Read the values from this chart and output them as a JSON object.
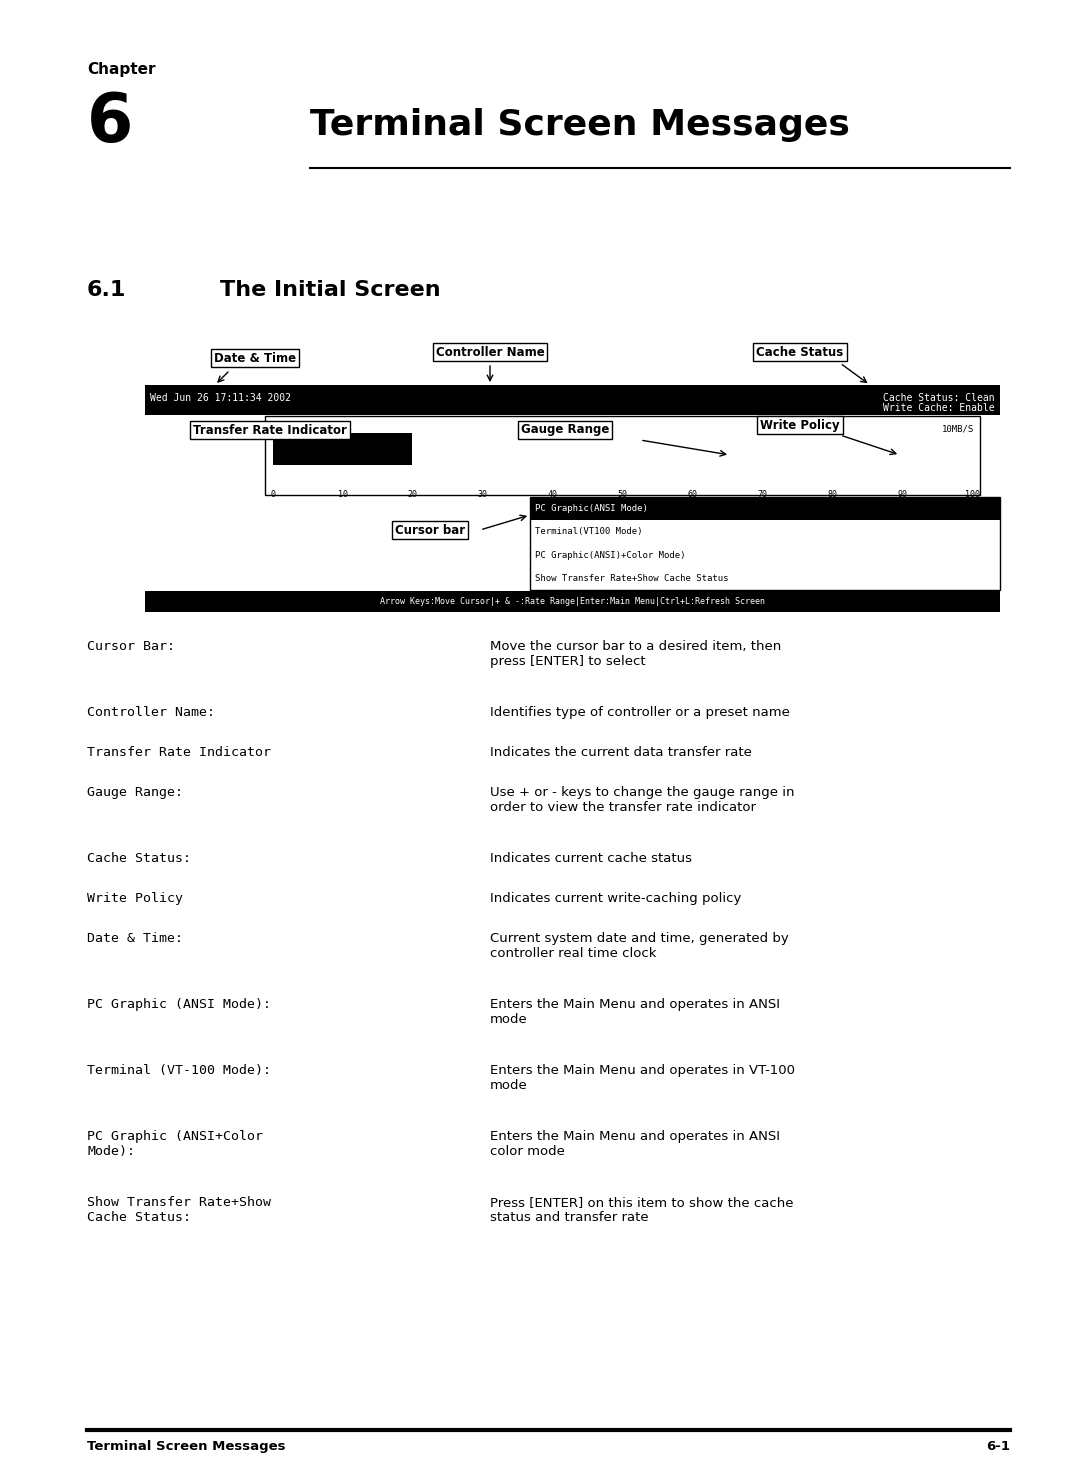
{
  "bg_color": "#ffffff",
  "page_width": 10.8,
  "page_height": 14.76,
  "chapter_label": "Chapter",
  "chapter_number": "6",
  "chapter_title": "Terminal Screen Messages",
  "section_number": "6.1",
  "section_title": "The Initial Screen",
  "footer_left": "Terminal Screen Messages",
  "footer_right": "6-1",
  "table_rows": [
    [
      "Cursor Bar:",
      "Move the cursor bar to a desired item, then\npress [ENTER] to select"
    ],
    [
      "Controller Name:",
      "Identifies type of controller or a preset name"
    ],
    [
      "Transfer Rate Indicator",
      "Indicates the current data transfer rate"
    ],
    [
      "Gauge Range:",
      "Use + or - keys to change the gauge range in\norder to view the transfer rate indicator"
    ],
    [
      "Cache Status:",
      "Indicates current cache status"
    ],
    [
      "Write Policy",
      "Indicates current write-caching policy"
    ],
    [
      "Date & Time:",
      "Current system date and time, generated by\ncontroller real time clock"
    ],
    [
      "PC Graphic (ANSI Mode):",
      "Enters the Main Menu and operates in ANSI\nmode"
    ],
    [
      "Terminal (VT-100 Mode):",
      "Enters the Main Menu and operates in VT-100\nmode"
    ],
    [
      "PC Graphic (ANSI+Color\nMode):",
      "Enters the Main Menu and operates in ANSI\ncolor mode"
    ],
    [
      "Show Transfer Rate+Show\nCache Status:",
      "Press [ENTER] on this item to show the cache\nstatus and transfer rate"
    ]
  ],
  "gauge_ticks": [
    "0",
    "10",
    "20",
    "30",
    "40",
    "50",
    "60",
    "70",
    "80",
    "90",
    "100"
  ],
  "menu_items": [
    "PC Graphic(ANSI Mode)",
    "Terminal(VT100 Mode)",
    "PC Graphic(ANSI)+Color Mode)",
    "Show Transfer Rate+Show Cache Status"
  ],
  "screen_bottom_bar_text": "Arrow Keys:Move Cursor|+ & -:Rate Range|Enter:Main Menu|Ctrl+L:Refresh Screen"
}
